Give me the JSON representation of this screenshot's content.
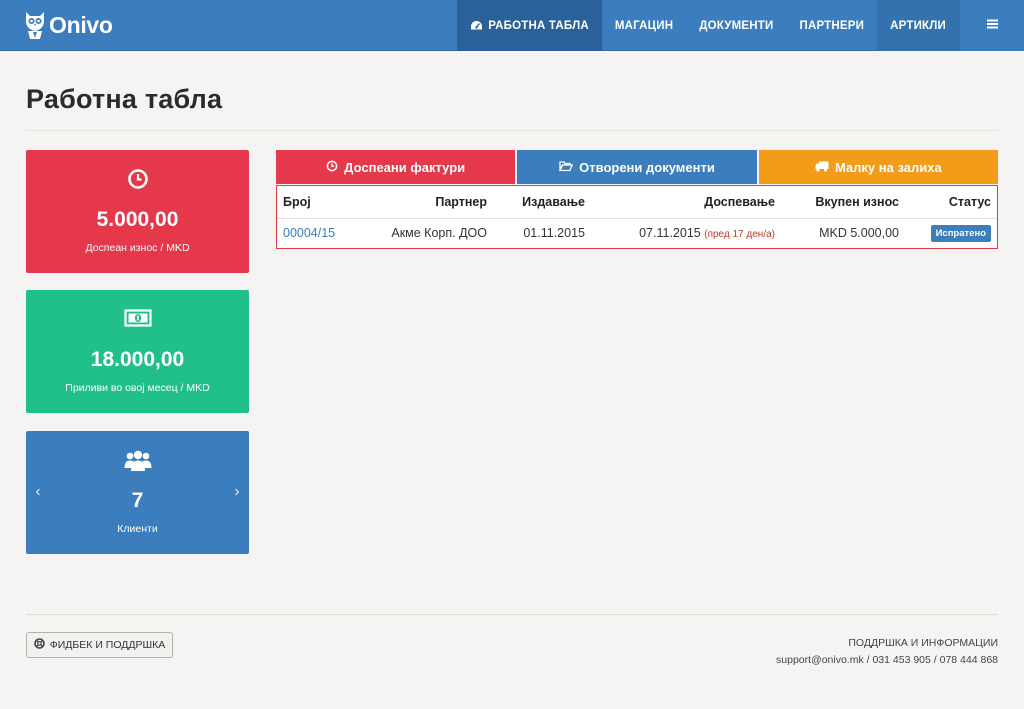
{
  "app": {
    "brand": "Onivo"
  },
  "nav": {
    "items": [
      {
        "label": "РАБОТНА ТАБЛА",
        "icon": "dashboard-icon",
        "active": true
      },
      {
        "label": "МАГАЦИН"
      },
      {
        "label": "ДОКУМЕНТИ"
      },
      {
        "label": "ПАРТНЕРИ"
      },
      {
        "label": "АРТИКЛИ"
      }
    ],
    "menu_icon": "hamburger-icon"
  },
  "page": {
    "title": "Работна табла"
  },
  "stats": [
    {
      "value": "5.000,00",
      "label": "Доспеан износ / MKD",
      "icon": "clock-icon",
      "color": "#e5384a"
    },
    {
      "value": "18.000,00",
      "label": "Приливи во овој месец / MKD",
      "icon": "money-icon",
      "color": "#21c08a"
    },
    {
      "value": "7",
      "label": "Клиенти",
      "icon": "users-icon",
      "color": "#3b7dbd",
      "prev": "‹",
      "next": "›"
    }
  ],
  "tabs": [
    {
      "label": "Доспеани фактури",
      "icon": "clock-icon",
      "color": "#e5384a"
    },
    {
      "label": "Отворени документи",
      "icon": "folder-open-icon",
      "color": "#3b7dbd"
    },
    {
      "label": "Малку на залиха",
      "icon": "truck-icon",
      "color": "#f39c1a"
    }
  ],
  "table": {
    "headers": [
      "Број",
      "Партнер",
      "Издавање",
      "Доспевање",
      "Вкупен износ",
      "Статус"
    ],
    "rows": [
      {
        "number": "00004/15",
        "partner": "Акме Корп. ДОО",
        "issued": "01.11.2015",
        "due": "07.11.2015",
        "due_note": "(пред 17 ден/а)",
        "total": "MKD 5.000,00",
        "status": "Испратено"
      }
    ]
  },
  "footer": {
    "feedback_label": "ФИДБЕК И ПОДДРШКА",
    "support_title": "ПОДДРШКА И ИНФОРМАЦИИ",
    "support_contact": "support@onivo.mk / 031 453 905 / 078 444 868"
  }
}
